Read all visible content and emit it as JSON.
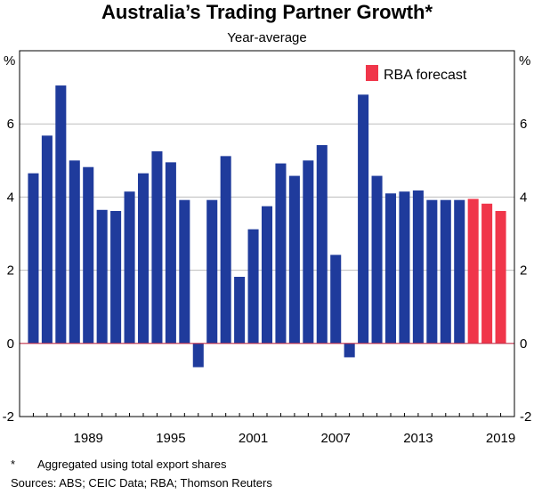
{
  "chart_data": {
    "type": "bar",
    "title": "Australia’s Trading Partner Growth*",
    "subtitle": "Year-average",
    "unit_left": "%",
    "unit_right": "%",
    "ylim": [
      -2,
      8
    ],
    "yticks": [
      -2,
      0,
      2,
      4,
      6
    ],
    "xlim": [
      1984,
      2020
    ],
    "xtick_labels": [
      "1989",
      "1995",
      "2001",
      "2007",
      "2013",
      "2019"
    ],
    "xticks": [
      1989,
      1995,
      2001,
      2007,
      2013,
      2019
    ],
    "grid": true,
    "legend_position": "top-right",
    "colors": {
      "actual": "#1f3b9c",
      "forecast": "#f0364a",
      "zero_line": "#c0304a",
      "grid": "#bdbdbd"
    },
    "series": [
      {
        "name": "",
        "kind": "actual",
        "x": [
          1985,
          1986,
          1987,
          1988,
          1989,
          1990,
          1991,
          1992,
          1993,
          1994,
          1995,
          1996,
          1997,
          1998,
          1999,
          2000,
          2001,
          2002,
          2003,
          2004,
          2005,
          2006,
          2007,
          2008,
          2009,
          2010,
          2011,
          2012,
          2013,
          2014,
          2015,
          2016
        ],
        "values": [
          4.65,
          5.68,
          7.05,
          5.0,
          4.82,
          3.65,
          3.62,
          4.15,
          4.65,
          5.25,
          4.95,
          3.92,
          -0.65,
          3.92,
          5.12,
          1.82,
          3.12,
          3.75,
          4.92,
          4.58,
          5.0,
          5.42,
          2.42,
          -0.38,
          6.8,
          4.58,
          4.1,
          4.15,
          4.18,
          3.92,
          3.92,
          3.92
        ]
      },
      {
        "name": "RBA forecast",
        "kind": "forecast",
        "x": [
          2017,
          2018,
          2019
        ],
        "values": [
          3.95,
          3.82,
          3.62
        ]
      }
    ],
    "footnote_mark": "*",
    "footnote": "Aggregated using total export shares",
    "sources": "Sources: ABS; CEIC Data; RBA; Thomson Reuters"
  }
}
